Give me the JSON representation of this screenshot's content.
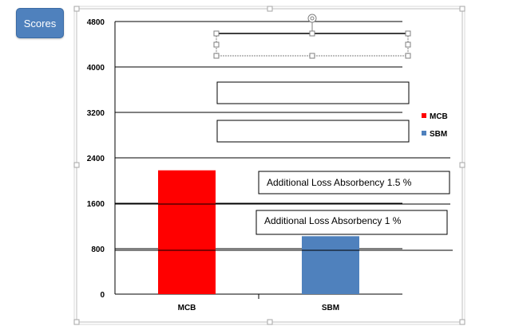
{
  "toolbar": {
    "scores_label": "Scores"
  },
  "annotations": {
    "box1": "Additional Loss Absorbency 1.5 %",
    "box2": "Additional Loss Absorbency 1 %"
  },
  "colors": {
    "accent_button": "#4f81bd",
    "series_mcb": "#ff0000",
    "series_sbm": "#4f81bd"
  },
  "chart_data": {
    "type": "bar",
    "categories": [
      "MCB",
      "SBM"
    ],
    "values": [
      2180,
      1020
    ],
    "bar_colors": [
      "#ff0000",
      "#4f81bd"
    ],
    "ylim": [
      0,
      4800
    ],
    "y_ticks": [
      "0",
      "800",
      "1600",
      "2400",
      "3200",
      "4000",
      "4800"
    ],
    "grid": true,
    "legend": {
      "position": "right",
      "entries": [
        {
          "label": "MCB",
          "color": "#ff0000"
        },
        {
          "label": "SBM",
          "color": "#4f81bd"
        }
      ]
    },
    "title": "",
    "xlabel": "",
    "ylabel": ""
  }
}
